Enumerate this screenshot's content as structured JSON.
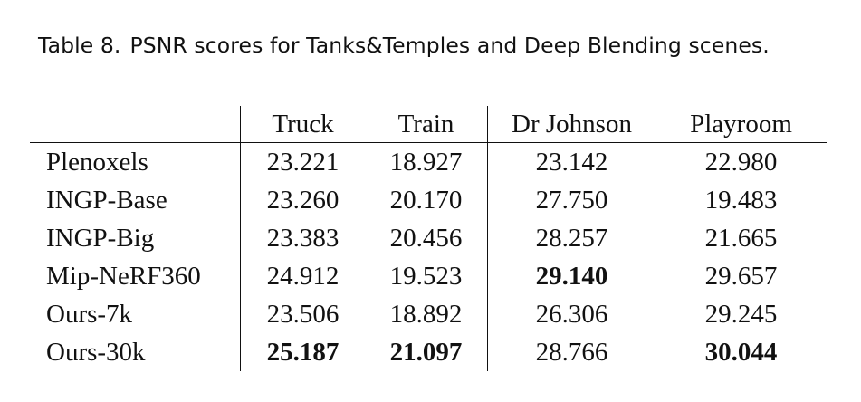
{
  "caption": {
    "label": "Table 8.",
    "text": "PSNR scores for Tanks&Temples and Deep Blending scenes."
  },
  "table": {
    "columns": [
      "",
      "Truck",
      "Train",
      "Dr Johnson",
      "Playroom"
    ],
    "rows": [
      {
        "method": "Plenoxels",
        "values": [
          "23.221",
          "18.927",
          "23.142",
          "22.980"
        ],
        "bold": [
          false,
          false,
          false,
          false
        ]
      },
      {
        "method": "INGP-Base",
        "values": [
          "23.260",
          "20.170",
          "27.750",
          "19.483"
        ],
        "bold": [
          false,
          false,
          false,
          false
        ]
      },
      {
        "method": "INGP-Big",
        "values": [
          "23.383",
          "20.456",
          "28.257",
          "21.665"
        ],
        "bold": [
          false,
          false,
          false,
          false
        ]
      },
      {
        "method": "Mip-NeRF360",
        "values": [
          "24.912",
          "19.523",
          "29.140",
          "29.657"
        ],
        "bold": [
          false,
          false,
          true,
          false
        ]
      },
      {
        "method": "Ours-7k",
        "values": [
          "23.506",
          "18.892",
          "26.306",
          "29.245"
        ],
        "bold": [
          false,
          false,
          false,
          false
        ]
      },
      {
        "method": "Ours-30k",
        "values": [
          "25.187",
          "21.097",
          "28.766",
          "30.044"
        ],
        "bold": [
          true,
          true,
          false,
          true
        ]
      }
    ]
  }
}
